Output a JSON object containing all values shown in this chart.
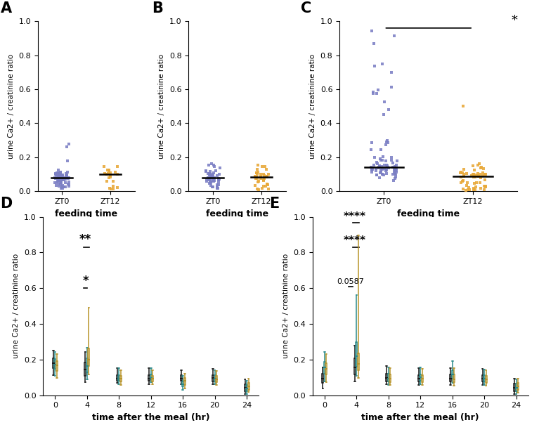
{
  "panel_A": {
    "label": "A",
    "zt0_median": 0.09,
    "zt12_median": 0.115,
    "zt0_color": "#7B7FC4",
    "zt12_color": "#E8A838",
    "zt0_n": 70,
    "zt12_n": 22,
    "ylim": [
      0,
      1.0
    ],
    "yticks": [
      0.0,
      0.2,
      0.4,
      0.6,
      0.8,
      1.0
    ],
    "xlabel": "feeding time",
    "ylabel": "urine Ca2+ / creatinine ratio",
    "sig": ""
  },
  "panel_B": {
    "label": "B",
    "zt0_median": 0.09,
    "zt12_median": 0.09,
    "zt0_color": "#7B7FC4",
    "zt12_color": "#E8A838",
    "zt0_n": 50,
    "zt12_n": 38,
    "ylim": [
      0,
      1.0
    ],
    "yticks": [
      0.0,
      0.2,
      0.4,
      0.6,
      0.8,
      1.0
    ],
    "xlabel": "feeding time",
    "ylabel": "urine Ca2+ / creatinine ratio",
    "sig": ""
  },
  "panel_C": {
    "label": "C",
    "zt0_median": 0.13,
    "zt12_median": 0.095,
    "zt0_color": "#7B7FC4",
    "zt12_color": "#E8A838",
    "zt0_n": 85,
    "zt12_n": 55,
    "ylim": [
      0,
      1.0
    ],
    "yticks": [
      0.0,
      0.2,
      0.4,
      0.6,
      0.8,
      1.0
    ],
    "xlabel": "feeding time",
    "ylabel": "urine Ca2+ / creatinine ratio",
    "sig": "*"
  },
  "panel_D": {
    "label": "D",
    "times": [
      0,
      4,
      8,
      12,
      16,
      20,
      24
    ],
    "colors": [
      "#1a1a1a",
      "#2A8B8B",
      "#B8942A"
    ],
    "medians": [
      [
        0.18,
        0.145,
        0.095,
        0.095,
        0.095,
        0.098,
        0.04
      ],
      [
        0.172,
        0.162,
        0.093,
        0.098,
        0.06,
        0.093,
        0.038
      ],
      [
        0.168,
        0.2,
        0.093,
        0.093,
        0.08,
        0.088,
        0.048
      ]
    ],
    "q1": [
      [
        0.152,
        0.108,
        0.082,
        0.08,
        0.08,
        0.078,
        0.022
      ],
      [
        0.15,
        0.128,
        0.08,
        0.088,
        0.048,
        0.078,
        0.022
      ],
      [
        0.138,
        0.162,
        0.076,
        0.076,
        0.058,
        0.073,
        0.032
      ]
    ],
    "q3": [
      [
        0.208,
        0.182,
        0.112,
        0.112,
        0.112,
        0.112,
        0.062
      ],
      [
        0.202,
        0.208,
        0.112,
        0.115,
        0.078,
        0.112,
        0.058
      ],
      [
        0.192,
        0.262,
        0.108,
        0.108,
        0.098,
        0.108,
        0.068
      ]
    ],
    "whisker_lo": [
      [
        0.112,
        0.072,
        0.068,
        0.062,
        0.062,
        0.062,
        0.008
      ],
      [
        0.108,
        0.088,
        0.062,
        0.072,
        0.032,
        0.062,
        0.008
      ],
      [
        0.098,
        0.118,
        0.058,
        0.06,
        0.038,
        0.058,
        0.018
      ]
    ],
    "whisker_hi": [
      [
        0.252,
        0.242,
        0.152,
        0.152,
        0.142,
        0.148,
        0.088
      ],
      [
        0.242,
        0.268,
        0.152,
        0.152,
        0.108,
        0.142,
        0.082
      ],
      [
        0.232,
        0.49,
        0.142,
        0.142,
        0.122,
        0.138,
        0.092
      ]
    ],
    "ylim": [
      0,
      1.0
    ],
    "yticks": [
      0.0,
      0.2,
      0.4,
      0.6,
      0.8,
      1.0
    ],
    "xlabel": "time after the meal (hr)",
    "ylabel": "urine Ca2+ / creatinine ratio"
  },
  "panel_E": {
    "label": "E",
    "times": [
      0,
      4,
      8,
      12,
      16,
      20,
      24
    ],
    "colors": [
      "#1a1a1a",
      "#2A8B8B",
      "#B8942A"
    ],
    "medians": [
      [
        0.095,
        0.155,
        0.098,
        0.095,
        0.095,
        0.095,
        0.042
      ],
      [
        0.155,
        0.22,
        0.095,
        0.1,
        0.118,
        0.095,
        0.042
      ],
      [
        0.148,
        0.175,
        0.092,
        0.092,
        0.09,
        0.09,
        0.048
      ]
    ],
    "q1": [
      [
        0.068,
        0.118,
        0.078,
        0.076,
        0.078,
        0.076,
        0.022
      ],
      [
        0.122,
        0.16,
        0.078,
        0.082,
        0.092,
        0.076,
        0.022
      ],
      [
        0.115,
        0.14,
        0.075,
        0.075,
        0.072,
        0.07,
        0.03
      ]
    ],
    "q3": [
      [
        0.122,
        0.208,
        0.122,
        0.112,
        0.115,
        0.112,
        0.065
      ],
      [
        0.188,
        0.298,
        0.122,
        0.118,
        0.142,
        0.112,
        0.065
      ],
      [
        0.18,
        0.235,
        0.115,
        0.112,
        0.115,
        0.11,
        0.07
      ]
    ],
    "whisker_lo": [
      [
        0.038,
        0.078,
        0.06,
        0.058,
        0.058,
        0.058,
        0.008
      ],
      [
        0.078,
        0.108,
        0.058,
        0.062,
        0.068,
        0.058,
        0.008
      ],
      [
        0.072,
        0.098,
        0.058,
        0.058,
        0.052,
        0.052,
        0.015
      ]
    ],
    "whisker_hi": [
      [
        0.155,
        0.278,
        0.162,
        0.152,
        0.152,
        0.148,
        0.092
      ],
      [
        0.242,
        0.56,
        0.158,
        0.155,
        0.192,
        0.145,
        0.09
      ],
      [
        0.232,
        0.895,
        0.152,
        0.148,
        0.152,
        0.14,
        0.095
      ]
    ],
    "ylim": [
      0,
      1.0
    ],
    "yticks": [
      0.0,
      0.2,
      0.4,
      0.6,
      0.8,
      1.0
    ],
    "xlabel": "time after the meal (hr)",
    "ylabel": "urine Ca2+ / creatinine ratio"
  },
  "blue_color": "#7B7FC4",
  "gold_color": "#E8A838",
  "black_color": "#1a1a1a",
  "teal_color": "#2A8B8B",
  "dark_gold_color": "#B8942A"
}
